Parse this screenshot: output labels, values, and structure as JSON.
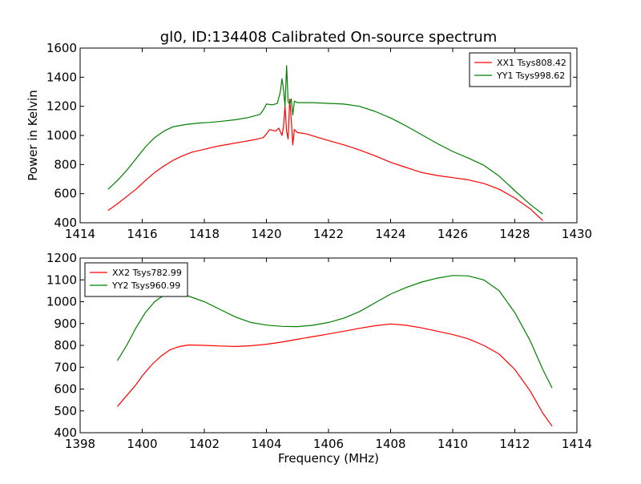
{
  "chart_data": [
    {
      "type": "line",
      "title": "gl0, ID:134408 Calibrated On-source spectrum",
      "xlabel": "",
      "ylabel": "Power in Kelvin",
      "xlim": [
        1414,
        1430
      ],
      "ylim": [
        400,
        1600
      ],
      "xticks": [
        1414,
        1416,
        1418,
        1420,
        1422,
        1424,
        1426,
        1428,
        1430
      ],
      "yticks": [
        400,
        600,
        800,
        1000,
        1200,
        1400,
        1600
      ],
      "legend_position": "top-right",
      "grid": false,
      "series": [
        {
          "name": "XX1 Tsys808.42",
          "color": "#ff0000",
          "points": [
            [
              1414.9,
              485
            ],
            [
              1415.2,
              530
            ],
            [
              1415.5,
              580
            ],
            [
              1415.8,
              630
            ],
            [
              1416.1,
              690
            ],
            [
              1416.4,
              745
            ],
            [
              1416.7,
              790
            ],
            [
              1417.0,
              830
            ],
            [
              1417.3,
              860
            ],
            [
              1417.6,
              885
            ],
            [
              1418.0,
              905
            ],
            [
              1418.4,
              925
            ],
            [
              1418.8,
              940
            ],
            [
              1419.2,
              955
            ],
            [
              1419.6,
              970
            ],
            [
              1419.9,
              985
            ],
            [
              1420.0,
              1010
            ],
            [
              1420.1,
              1040
            ],
            [
              1420.3,
              1030
            ],
            [
              1420.4,
              1050
            ],
            [
              1420.5,
              1000
            ],
            [
              1420.55,
              1060
            ],
            [
              1420.6,
              1200
            ],
            [
              1420.65,
              1030
            ],
            [
              1420.7,
              975
            ],
            [
              1420.75,
              1250
            ],
            [
              1420.8,
              1110
            ],
            [
              1420.85,
              935
            ],
            [
              1420.9,
              1040
            ],
            [
              1421.0,
              1020
            ],
            [
              1421.3,
              1010
            ],
            [
              1421.6,
              990
            ],
            [
              1422.0,
              965
            ],
            [
              1422.5,
              935
            ],
            [
              1423.0,
              900
            ],
            [
              1423.5,
              860
            ],
            [
              1424.0,
              815
            ],
            [
              1424.5,
              780
            ],
            [
              1425.0,
              745
            ],
            [
              1425.5,
              725
            ],
            [
              1426.0,
              710
            ],
            [
              1426.5,
              695
            ],
            [
              1427.0,
              670
            ],
            [
              1427.5,
              630
            ],
            [
              1428.0,
              570
            ],
            [
              1428.5,
              495
            ],
            [
              1428.9,
              415
            ]
          ]
        },
        {
          "name": "YY1 Tsys998.62",
          "color": "#008000",
          "points": [
            [
              1414.9,
              630
            ],
            [
              1415.2,
              690
            ],
            [
              1415.5,
              760
            ],
            [
              1415.8,
              840
            ],
            [
              1416.1,
              920
            ],
            [
              1416.4,
              985
            ],
            [
              1416.7,
              1030
            ],
            [
              1417.0,
              1060
            ],
            [
              1417.4,
              1075
            ],
            [
              1417.8,
              1085
            ],
            [
              1418.2,
              1090
            ],
            [
              1418.6,
              1098
            ],
            [
              1419.0,
              1108
            ],
            [
              1419.4,
              1122
            ],
            [
              1419.8,
              1145
            ],
            [
              1419.9,
              1175
            ],
            [
              1420.0,
              1215
            ],
            [
              1420.2,
              1210
            ],
            [
              1420.35,
              1220
            ],
            [
              1420.45,
              1300
            ],
            [
              1420.5,
              1390
            ],
            [
              1420.55,
              1320
            ],
            [
              1420.6,
              1200
            ],
            [
              1420.65,
              1480
            ],
            [
              1420.7,
              1230
            ],
            [
              1420.75,
              1215
            ],
            [
              1420.8,
              1250
            ],
            [
              1420.85,
              1140
            ],
            [
              1420.9,
              1235
            ],
            [
              1421.0,
              1225
            ],
            [
              1421.5,
              1225
            ],
            [
              1422.0,
              1220
            ],
            [
              1422.5,
              1215
            ],
            [
              1423.0,
              1200
            ],
            [
              1423.5,
              1165
            ],
            [
              1424.0,
              1120
            ],
            [
              1424.5,
              1065
            ],
            [
              1425.0,
              1005
            ],
            [
              1425.5,
              945
            ],
            [
              1426.0,
              890
            ],
            [
              1426.5,
              845
            ],
            [
              1427.0,
              795
            ],
            [
              1427.5,
              720
            ],
            [
              1428.0,
              620
            ],
            [
              1428.5,
              525
            ],
            [
              1428.9,
              460
            ]
          ]
        }
      ]
    },
    {
      "type": "line",
      "title": "",
      "xlabel": "Frequency (MHz)",
      "ylabel": "",
      "xlim": [
        1398,
        1414
      ],
      "ylim": [
        400,
        1200
      ],
      "xticks": [
        1398,
        1400,
        1402,
        1404,
        1406,
        1408,
        1410,
        1412,
        1414
      ],
      "yticks": [
        400,
        500,
        600,
        700,
        800,
        900,
        1000,
        1100,
        1200
      ],
      "legend_position": "top-left",
      "grid": false,
      "series": [
        {
          "name": "XX2 Tsys782.99",
          "color": "#ff0000",
          "points": [
            [
              1399.2,
              520
            ],
            [
              1399.5,
              570
            ],
            [
              1399.8,
              620
            ],
            [
              1400.0,
              660
            ],
            [
              1400.3,
              710
            ],
            [
              1400.6,
              750
            ],
            [
              1400.9,
              780
            ],
            [
              1401.2,
              795
            ],
            [
              1401.5,
              802
            ],
            [
              1402.0,
              800
            ],
            [
              1402.5,
              797
            ],
            [
              1403.0,
              795
            ],
            [
              1403.5,
              798
            ],
            [
              1404.0,
              805
            ],
            [
              1404.5,
              815
            ],
            [
              1405.0,
              828
            ],
            [
              1405.5,
              840
            ],
            [
              1406.0,
              852
            ],
            [
              1406.5,
              865
            ],
            [
              1407.0,
              878
            ],
            [
              1407.5,
              890
            ],
            [
              1408.0,
              898
            ],
            [
              1408.5,
              892
            ],
            [
              1409.0,
              880
            ],
            [
              1409.5,
              865
            ],
            [
              1410.0,
              850
            ],
            [
              1410.5,
              830
            ],
            [
              1411.0,
              800
            ],
            [
              1411.5,
              760
            ],
            [
              1412.0,
              690
            ],
            [
              1412.5,
              590
            ],
            [
              1412.9,
              490
            ],
            [
              1413.2,
              430
            ]
          ]
        },
        {
          "name": "YY2 Tsys960.99",
          "color": "#008000",
          "points": [
            [
              1399.2,
              730
            ],
            [
              1399.5,
              800
            ],
            [
              1399.8,
              880
            ],
            [
              1400.1,
              950
            ],
            [
              1400.4,
              1000
            ],
            [
              1400.7,
              1030
            ],
            [
              1401.0,
              1038
            ],
            [
              1401.3,
              1035
            ],
            [
              1401.6,
              1020
            ],
            [
              1402.0,
              1000
            ],
            [
              1402.5,
              965
            ],
            [
              1403.0,
              930
            ],
            [
              1403.5,
              905
            ],
            [
              1404.0,
              893
            ],
            [
              1404.5,
              887
            ],
            [
              1405.0,
              886
            ],
            [
              1405.5,
              892
            ],
            [
              1406.0,
              905
            ],
            [
              1406.5,
              925
            ],
            [
              1407.0,
              955
            ],
            [
              1407.5,
              995
            ],
            [
              1408.0,
              1035
            ],
            [
              1408.5,
              1065
            ],
            [
              1409.0,
              1090
            ],
            [
              1409.5,
              1108
            ],
            [
              1410.0,
              1120
            ],
            [
              1410.5,
              1118
            ],
            [
              1411.0,
              1100
            ],
            [
              1411.5,
              1050
            ],
            [
              1412.0,
              950
            ],
            [
              1412.5,
              820
            ],
            [
              1412.9,
              690
            ],
            [
              1413.2,
              605
            ]
          ]
        }
      ]
    }
  ]
}
